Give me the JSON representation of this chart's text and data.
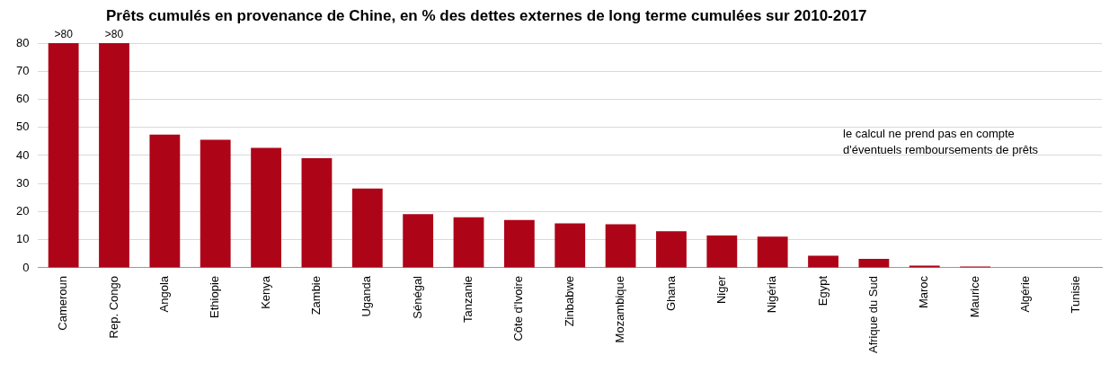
{
  "chart_data": {
    "type": "bar",
    "title": "Prêts cumulés en provenance de Chine, en % des dettes externes de long terme cumulées sur 2010-2017",
    "categories": [
      "Cameroun",
      "Rep. Congo",
      "Angola",
      "Ethiopie",
      "Kenya",
      "Zambie",
      "Uganda",
      "Sénégal",
      "Tanzanie",
      "Côte d'Ivoire",
      "Zinbabwe",
      "Mozambique",
      "Ghana",
      "Niger",
      "Nigéria",
      "Egypt",
      "Afrique du Sud",
      "Maroc",
      "Maurice",
      "Algérie",
      "Tunisie"
    ],
    "values": [
      80,
      80,
      47.4,
      45.6,
      42.7,
      39,
      28.2,
      19.1,
      18,
      17,
      15.8,
      15.5,
      13,
      11.5,
      11.1,
      4.3,
      3.2,
      0.8,
      0.5,
      0,
      0
    ],
    "value_labels": [
      ">80",
      ">80",
      null,
      null,
      null,
      null,
      null,
      null,
      null,
      null,
      null,
      null,
      null,
      null,
      null,
      null,
      null,
      null,
      null,
      null,
      null
    ],
    "color": "#ae0418",
    "ylim": [
      0,
      80
    ],
    "yticks": [
      0,
      10,
      20,
      30,
      40,
      50,
      60,
      70,
      80
    ],
    "grid": "y",
    "annotations": [
      "le calcul ne prend pas en compte d'éventuels remboursements de prêts"
    ]
  }
}
